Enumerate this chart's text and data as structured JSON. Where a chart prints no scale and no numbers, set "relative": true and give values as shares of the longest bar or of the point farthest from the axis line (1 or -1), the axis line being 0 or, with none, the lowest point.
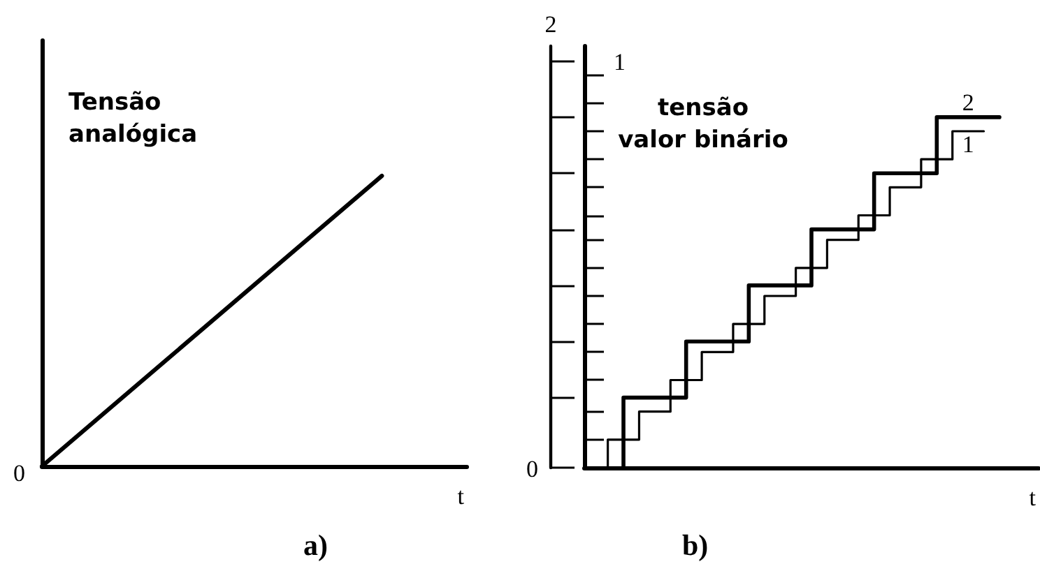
{
  "chart_data": [
    {
      "type": "line",
      "title": "a)",
      "xlabel": "t",
      "ylabel": "Tensão analógica",
      "relative": true,
      "annotations": [
        "0"
      ],
      "categories": [
        null,
        null,
        null,
        null,
        null,
        null
      ],
      "color": "#000000",
      "values": [
        0,
        null,
        null,
        null,
        1,
        null
      ]
    },
    {
      "type": "step",
      "title": "b)",
      "xlabel": "t",
      "ylabel": "1",
      "y2label": "2",
      "relative": true,
      "annotations": [
        "0",
        "tensão valor binário"
      ],
      "categories": [
        null,
        null,
        null,
        null,
        null,
        null,
        null,
        null,
        null,
        null,
        null,
        null,
        null,
        null,
        null,
        null,
        null,
        null,
        null,
        null,
        null,
        null,
        null,
        null,
        null,
        null,
        null,
        null,
        null
      ],
      "series": [
        {
          "name": "1",
          "color": "#000000",
          "values": [
            null,
            0,
            0.08,
            0.08,
            0.16,
            0.16,
            0.25,
            0.25,
            0.33,
            0.33,
            0.41,
            0.41,
            0.49,
            0.49,
            0.57,
            0.57,
            0.65,
            0.65,
            0.72,
            0.72,
            0.8,
            0.8,
            0.88,
            0.88,
            0.96,
            0.96,
            null,
            null,
            null
          ]
        },
        {
          "name": "2",
          "color": "#000000",
          "values": [
            null,
            null,
            0,
            0.2,
            0.2,
            0.2,
            0.2,
            0.36,
            0.36,
            0.36,
            0.36,
            0.52,
            0.52,
            0.52,
            0.52,
            0.68,
            0.68,
            0.68,
            0.68,
            0.84,
            0.84,
            0.84,
            0.84,
            1,
            1,
            1,
            1,
            null,
            null
          ]
        }
      ]
    }
  ]
}
